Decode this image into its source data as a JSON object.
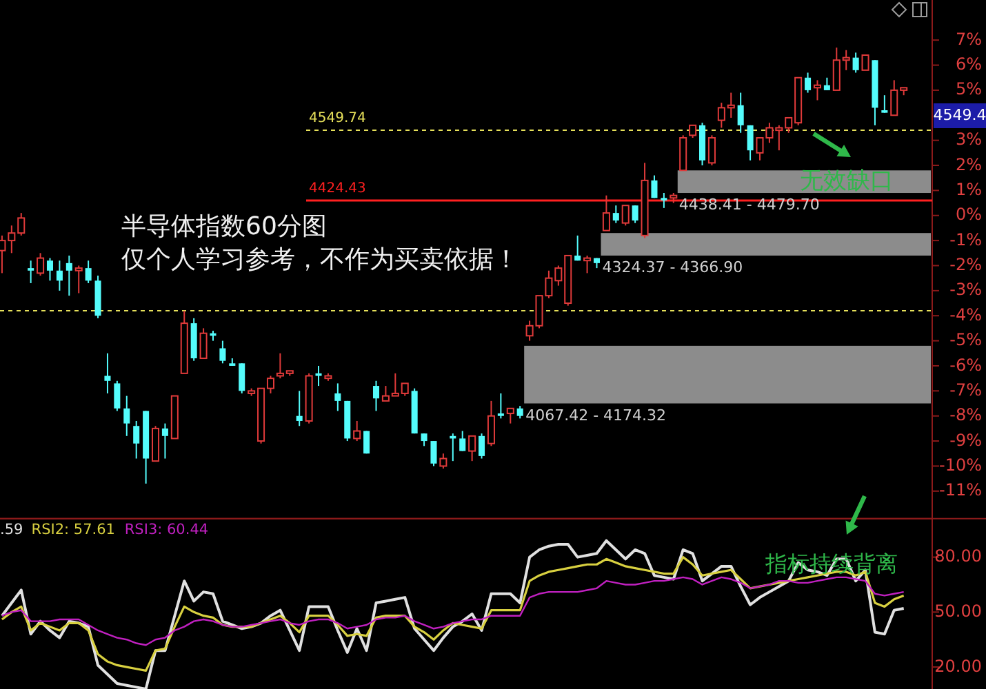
{
  "chart_data": [
    {
      "type": "candlestick",
      "title": "半导体指数60分图",
      "subtitle": "仅个人学习参考，不作为买卖依据！",
      "categories": [
        null,
        null,
        null,
        null,
        null,
        null,
        null,
        null,
        null,
        null,
        null,
        null,
        null,
        null,
        null,
        null,
        null,
        null,
        null,
        null,
        null,
        null,
        null,
        null,
        null,
        null,
        null,
        null,
        null,
        null,
        null,
        null,
        null,
        null,
        null,
        null,
        null,
        null,
        null,
        null,
        null,
        null,
        null,
        null,
        null,
        null,
        null,
        null,
        null,
        null,
        null,
        null,
        null,
        null,
        null,
        null,
        null,
        null,
        null,
        null,
        null,
        null,
        null,
        null,
        null,
        null,
        null,
        null,
        null,
        null,
        null,
        null,
        null,
        null,
        null,
        null,
        null,
        null,
        null,
        null,
        null,
        null,
        null,
        null,
        null,
        null,
        null,
        null,
        null,
        null,
        null,
        null,
        null,
        null,
        null
      ],
      "ohlc": [
        [
          -1.4,
          -0.8,
          -2.3,
          -1.0
        ],
        [
          -1.0,
          -0.4,
          -1.5,
          -0.7
        ],
        [
          -0.7,
          0.1,
          -0.8,
          -0.1
        ],
        [
          -2.1,
          -1.8,
          -2.7,
          -2.2
        ],
        [
          -2.3,
          -1.5,
          -2.4,
          -1.7
        ],
        [
          -1.8,
          -1.7,
          -2.6,
          -2.2
        ],
        [
          -2.2,
          -1.8,
          -3.0,
          -2.6
        ],
        [
          -1.9,
          -1.6,
          -3.2,
          -2.2
        ],
        [
          -2.2,
          -2.0,
          -3.1,
          -2.1
        ],
        [
          -2.1,
          -1.8,
          -2.7,
          -2.6
        ],
        [
          -2.6,
          -2.4,
          -4.1,
          -4.0
        ],
        [
          -6.4,
          -5.5,
          -7.1,
          -6.6
        ],
        [
          -6.7,
          -6.6,
          -7.8,
          -7.7
        ],
        [
          -7.7,
          -7.2,
          -8.8,
          -8.3
        ],
        [
          -8.4,
          -8.2,
          -9.7,
          -9.1
        ],
        [
          -7.8,
          -7.8,
          -10.7,
          -9.7
        ],
        [
          -9.8,
          -8.4,
          -9.8,
          -8.5
        ],
        [
          -8.5,
          -8.3,
          -9.7,
          -8.8
        ],
        [
          -8.9,
          -7.2,
          -8.9,
          -7.2
        ],
        [
          -6.3,
          -3.8,
          -6.3,
          -4.3
        ],
        [
          -4.3,
          -4.1,
          -5.8,
          -5.7
        ],
        [
          -5.7,
          -4.5,
          -5.7,
          -4.7
        ],
        [
          -4.7,
          -4.6,
          -5.0,
          -4.8
        ],
        [
          -5.3,
          -5.0,
          -5.9,
          -5.8
        ],
        [
          -5.9,
          -5.7,
          -6.0,
          -6.0
        ],
        [
          -5.9,
          -5.9,
          -7.1,
          -7.0
        ],
        [
          -7.1,
          -6.9,
          -7.2,
          -7.0
        ],
        [
          -9.0,
          -6.9,
          -9.1,
          -6.9
        ],
        [
          -6.9,
          -6.4,
          -7.1,
          -6.5
        ],
        [
          -6.4,
          -5.5,
          -6.5,
          -6.3
        ],
        [
          -6.3,
          -6.2,
          -6.4,
          -6.2
        ],
        [
          -8.0,
          -7.0,
          -8.4,
          -8.2
        ],
        [
          -8.2,
          -6.3,
          -8.3,
          -6.4
        ],
        [
          -6.3,
          -6.0,
          -6.8,
          -6.4
        ],
        [
          -6.5,
          -6.3,
          -6.6,
          -6.4
        ],
        [
          -7.1,
          -6.7,
          -7.8,
          -7.4
        ],
        [
          -7.4,
          -7.4,
          -9.0,
          -8.9
        ],
        [
          -8.9,
          -8.2,
          -9.0,
          -8.6
        ],
        [
          -8.6,
          -8.6,
          -9.5,
          -9.5
        ],
        [
          -6.8,
          -6.6,
          -7.8,
          -7.3
        ],
        [
          -7.4,
          -6.8,
          -7.4,
          -7.2
        ],
        [
          -7.2,
          -6.3,
          -7.2,
          -7.1
        ],
        [
          -7.1,
          -6.7,
          -7.2,
          -6.7
        ],
        [
          -7.0,
          -6.9,
          -8.7,
          -8.7
        ],
        [
          -8.7,
          -8.7,
          -9.2,
          -9.0
        ],
        [
          -9.0,
          -9.0,
          -10.0,
          -9.9
        ],
        [
          -10.0,
          -9.5,
          -10.1,
          -9.7
        ],
        [
          -8.8,
          -8.7,
          -9.8,
          -8.9
        ],
        [
          -8.9,
          -8.6,
          -9.4,
          -9.4
        ],
        [
          -9.4,
          -8.8,
          -9.8,
          -8.8
        ],
        [
          -8.8,
          -8.7,
          -9.7,
          -9.6
        ],
        [
          -9.1,
          -7.4,
          -9.2,
          -8.0
        ],
        [
          -7.9,
          -7.1,
          -8.1,
          -8.0
        ],
        [
          -7.9,
          -7.7,
          -8.3,
          -7.7
        ],
        [
          -7.7,
          -7.6,
          -8.1,
          -8.0
        ],
        [
          -4.8,
          -4.2,
          -5.0,
          -4.4
        ],
        [
          -4.4,
          -3.2,
          -4.5,
          -3.2
        ],
        [
          -3.2,
          -2.2,
          -3.3,
          -2.5
        ],
        [
          -2.6,
          -2.0,
          -2.8,
          -2.1
        ],
        [
          -3.5,
          -1.6,
          -3.6,
          -1.6
        ],
        [
          -1.6,
          -0.8,
          -1.8,
          -1.8
        ],
        [
          -1.8,
          -1.6,
          -2.3,
          -1.7
        ],
        [
          -1.7,
          -1.7,
          -2.1,
          -1.9
        ],
        [
          -0.6,
          0.8,
          -0.6,
          0.1
        ],
        [
          0.1,
          0.4,
          -0.3,
          -0.2
        ],
        [
          -0.3,
          0.4,
          -0.4,
          0.4
        ],
        [
          0.4,
          0.4,
          -0.3,
          -0.2
        ],
        [
          -0.8,
          2.1,
          -0.9,
          1.4
        ],
        [
          1.4,
          1.6,
          0.7,
          0.7
        ],
        [
          0.7,
          0.9,
          0.3,
          0.6
        ],
        [
          0.7,
          0.9,
          0.5,
          0.8
        ],
        [
          1.8,
          3.2,
          1.8,
          3.1
        ],
        [
          3.2,
          3.6,
          3.1,
          3.6
        ],
        [
          3.6,
          3.7,
          2.0,
          2.2
        ],
        [
          2.1,
          3.2,
          2.0,
          3.1
        ],
        [
          3.8,
          4.5,
          3.5,
          4.3
        ],
        [
          4.3,
          4.9,
          3.9,
          4.4
        ],
        [
          4.4,
          4.9,
          3.3,
          3.6
        ],
        [
          3.6,
          3.6,
          2.2,
          2.6
        ],
        [
          2.5,
          3.1,
          2.2,
          3.1
        ],
        [
          3.1,
          3.7,
          2.9,
          3.5
        ],
        [
          3.4,
          3.6,
          2.6,
          3.5
        ],
        [
          3.5,
          3.9,
          3.3,
          3.9
        ],
        [
          3.7,
          5.5,
          3.6,
          5.5
        ],
        [
          5.5,
          5.7,
          4.9,
          5.0
        ],
        [
          5.1,
          5.4,
          4.6,
          5.2
        ],
        [
          5.2,
          5.5,
          5.0,
          5.0
        ],
        [
          5.0,
          6.7,
          5.0,
          6.2
        ],
        [
          6.2,
          6.6,
          5.8,
          6.3
        ],
        [
          6.3,
          6.5,
          5.7,
          5.8
        ],
        [
          5.8,
          6.4,
          5.8,
          6.4
        ],
        [
          6.2,
          6.2,
          3.6,
          4.3
        ],
        [
          4.2,
          4.8,
          4.1,
          4.1
        ],
        [
          4.0,
          5.4,
          4.0,
          5.0
        ],
        [
          5.0,
          5.1,
          4.8,
          5.1
        ]
      ],
      "ylim": [
        -12.1,
        8.6
      ],
      "yticks": [
        {
          "value": 7,
          "label": "7%"
        },
        {
          "value": 6,
          "label": "6%"
        },
        {
          "value": 5,
          "label": "5%"
        },
        {
          "value": 3,
          "label": "3%"
        },
        {
          "value": 2,
          "label": "2%"
        },
        {
          "value": 1,
          "label": "1%"
        },
        {
          "value": 0,
          "label": "0%"
        },
        {
          "value": -1,
          "label": "-1%"
        },
        {
          "value": -2,
          "label": "-2%"
        },
        {
          "value": -3,
          "label": "-3%"
        },
        {
          "value": -4,
          "label": "-4%"
        },
        {
          "value": -5,
          "label": "-5%"
        },
        {
          "value": -6,
          "label": "-6%"
        },
        {
          "value": -7,
          "label": "-7%"
        },
        {
          "value": -8,
          "label": "-8%"
        },
        {
          "value": -9,
          "label": "-9%"
        },
        {
          "value": -10,
          "label": "-10%"
        },
        {
          "value": -11,
          "label": "-11%"
        }
      ],
      "ref_lines": [
        {
          "axis": "y",
          "value": 3.4,
          "color": "#e6e05a",
          "line_style": "dashed"
        },
        {
          "axis": "y",
          "value": 0.6,
          "color": "#ff2020",
          "line_style": "solid"
        },
        {
          "axis": "y",
          "value": -3.8,
          "color": "#e6e05a",
          "line_style": "dashed"
        }
      ],
      "bands": [
        {
          "axis": "y",
          "from": -7.5,
          "to": -5.2,
          "label": "4067.42 - 4174.32",
          "color": "#8c8c8c"
        },
        {
          "axis": "y",
          "from": -1.6,
          "to": -0.7,
          "label": "4324.37 - 4366.90",
          "color": "#8c8c8c"
        },
        {
          "axis": "y",
          "from": 0.9,
          "to": 1.8,
          "label": "4438.41 - 4479.70",
          "color": "#8c8c8c"
        }
      ],
      "annotations": [
        "4549.74",
        "4424.43",
        "4549.4",
        "无效缺口"
      ]
    },
    {
      "type": "line",
      "categories": [
        null,
        null,
        null,
        null,
        null,
        null,
        null,
        null,
        null,
        null,
        null,
        null,
        null,
        null,
        null,
        null,
        null,
        null,
        null,
        null,
        null,
        null,
        null,
        null,
        null,
        null,
        null,
        null,
        null,
        null,
        null,
        null,
        null,
        null,
        null,
        null,
        null,
        null,
        null,
        null,
        null,
        null,
        null,
        null,
        null,
        null,
        null,
        null,
        null,
        null,
        null,
        null,
        null,
        null,
        null,
        null,
        null,
        null,
        null,
        null,
        null,
        null,
        null,
        null,
        null,
        null,
        null,
        null,
        null,
        null,
        null,
        null,
        null,
        null,
        null,
        null,
        null,
        null,
        null,
        null,
        null,
        null,
        null,
        null,
        null,
        null,
        null,
        null,
        null,
        null,
        null,
        null,
        null,
        null,
        null
      ],
      "series": [
        {
          "name": ".59",
          "color": "#e0e0e0",
          "values": [
            48,
            55,
            62,
            38,
            45,
            40,
            36,
            45,
            44,
            42,
            21,
            16,
            11,
            10,
            9,
            8,
            29,
            29,
            48,
            67,
            56,
            61,
            60,
            45,
            43,
            41,
            42,
            44,
            48,
            51,
            40,
            29,
            53,
            53,
            53,
            40,
            28,
            41,
            29,
            55,
            56,
            57,
            58,
            41,
            35,
            29,
            36,
            42,
            45,
            49,
            40,
            60,
            60,
            60,
            55,
            80,
            84,
            86,
            87,
            87,
            80,
            81,
            82,
            89,
            84,
            79,
            84,
            82,
            70,
            69,
            68,
            84,
            82,
            67,
            71,
            75,
            75,
            64,
            54,
            58,
            61,
            64,
            67,
            77,
            73,
            72,
            70,
            79,
            79,
            67,
            73,
            39,
            38,
            51,
            52
          ]
        },
        {
          "name": "RSI2: 57.61",
          "color": "#d8d040",
          "values": [
            46,
            50,
            53,
            40,
            44,
            42,
            40,
            44,
            44,
            40,
            27,
            23,
            21,
            20,
            19,
            18,
            29,
            30,
            42,
            53,
            50,
            48,
            47,
            43,
            42,
            42,
            42,
            44,
            46,
            48,
            44,
            39,
            48,
            48,
            48,
            43,
            37,
            38,
            37,
            47,
            48,
            48,
            48,
            42,
            39,
            35,
            40,
            44,
            43,
            42,
            41,
            51,
            51,
            51,
            51,
            67,
            70,
            72,
            73,
            74,
            75,
            76,
            76,
            79,
            77,
            75,
            74,
            73,
            72,
            71,
            71,
            80,
            76,
            70,
            71,
            72,
            73,
            68,
            63,
            64,
            65,
            66,
            67,
            68,
            69,
            70,
            71,
            72,
            72,
            70,
            72,
            55,
            53,
            57,
            59
          ]
        },
        {
          "name": "RSI3: 60.44",
          "color": "#c020c0",
          "values": [
            48,
            50,
            51,
            45,
            45,
            45,
            46,
            46,
            46,
            43,
            40,
            38,
            36,
            35,
            33,
            32,
            35,
            36,
            40,
            42,
            45,
            46,
            45,
            43,
            42,
            42,
            43,
            44,
            45,
            46,
            44,
            43,
            45,
            46,
            46,
            44,
            41,
            42,
            43,
            46,
            47,
            47,
            48,
            45,
            43,
            41,
            42,
            44,
            45,
            46,
            46,
            48,
            48,
            48,
            48,
            58,
            60,
            61,
            61,
            61,
            61,
            62,
            63,
            67,
            66,
            65,
            65,
            66,
            67,
            67,
            68,
            69,
            68,
            65,
            67,
            69,
            68,
            66,
            63,
            64,
            65,
            67,
            67,
            66,
            66,
            67,
            68,
            69,
            69,
            68,
            67,
            60,
            59,
            60,
            61
          ]
        }
      ],
      "ylim": [
        8,
        101
      ],
      "yticks": [
        {
          "value": 80,
          "label": "80.00"
        },
        {
          "value": 50,
          "label": "50.00"
        },
        {
          "value": 20,
          "label": "20.00"
        }
      ],
      "legend": "top left",
      "annotations": [
        "指标持续背离"
      ]
    }
  ]
}
